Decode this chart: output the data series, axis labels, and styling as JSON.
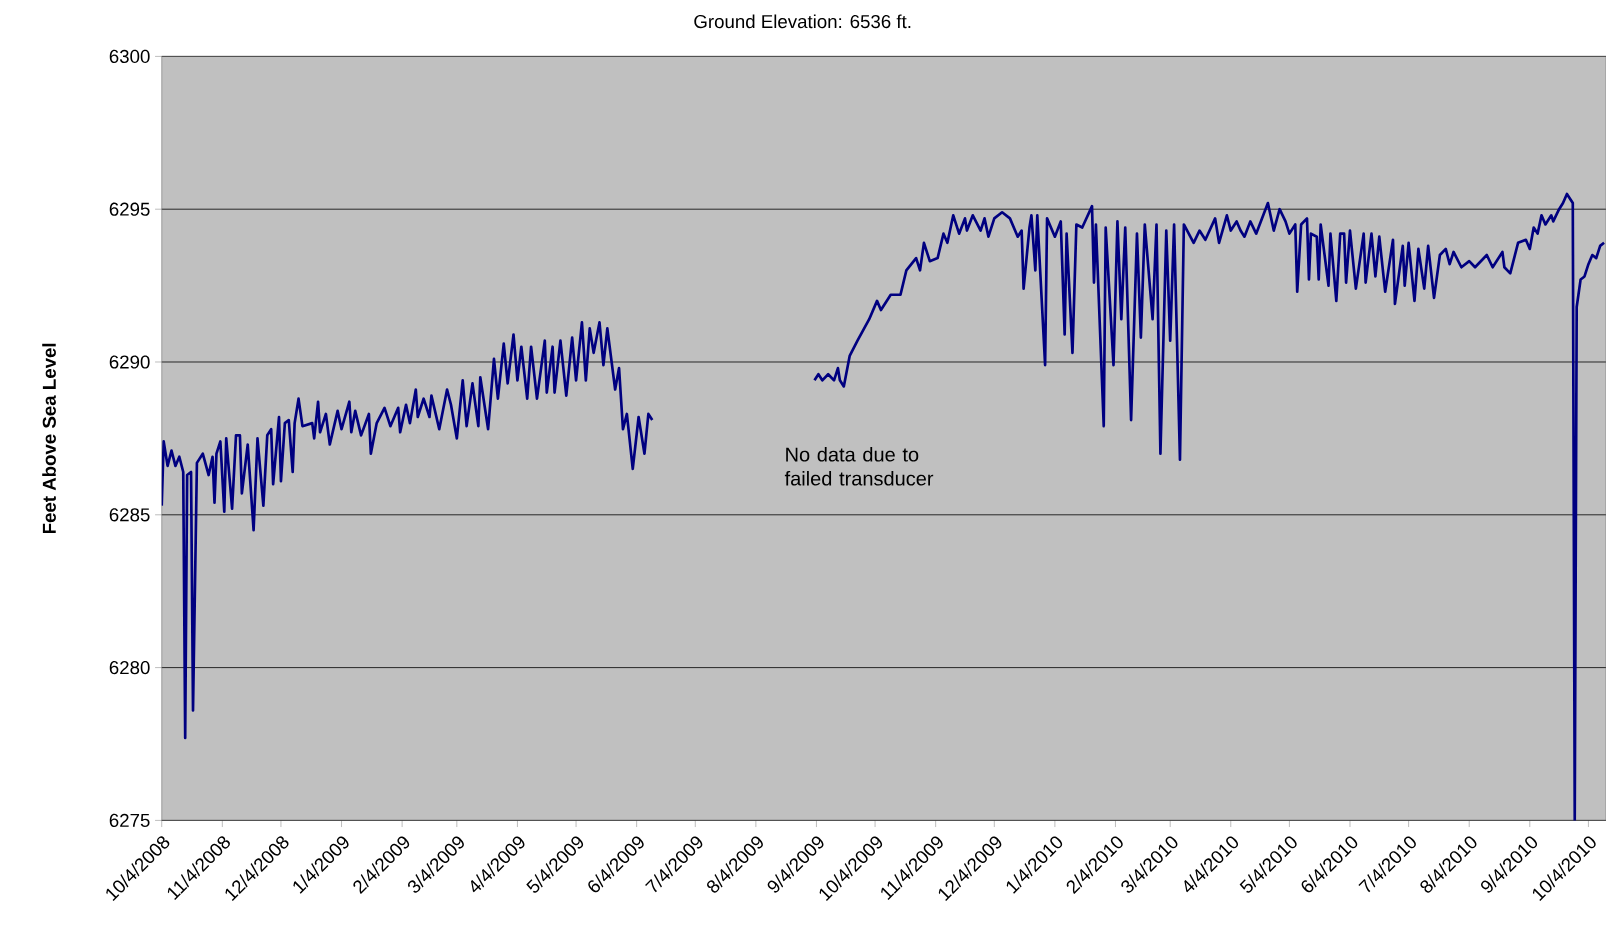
{
  "chart_data": {
    "type": "line",
    "title": "Ground Elevation:  6536 ft.",
    "ylabel": "Feet Above Sea Level",
    "annotations": [
      "No data due to failed transducer"
    ],
    "color": "#000080",
    "grid": "y",
    "xlim": [
      "2008-10-04",
      "2010-10-13"
    ],
    "ylim": [
      6275,
      6300
    ],
    "yticks": [
      6275,
      6280,
      6285,
      6290,
      6295,
      6300
    ],
    "xticks": [
      {
        "value": "2008-10-04",
        "label": "10/4/2008"
      },
      {
        "value": "2008-11-04",
        "label": "11/4/2008"
      },
      {
        "value": "2008-12-04",
        "label": "12/4/2008"
      },
      {
        "value": "2009-01-04",
        "label": "1/4/2009"
      },
      {
        "value": "2009-02-04",
        "label": "2/4/2009"
      },
      {
        "value": "2009-03-04",
        "label": "3/4/2009"
      },
      {
        "value": "2009-04-04",
        "label": "4/4/2009"
      },
      {
        "value": "2009-05-04",
        "label": "5/4/2009"
      },
      {
        "value": "2009-06-04",
        "label": "6/4/2009"
      },
      {
        "value": "2009-07-04",
        "label": "7/4/2009"
      },
      {
        "value": "2009-08-04",
        "label": "8/4/2009"
      },
      {
        "value": "2009-09-04",
        "label": "9/4/2009"
      },
      {
        "value": "2009-10-04",
        "label": "10/4/2009"
      },
      {
        "value": "2009-11-04",
        "label": "11/4/2009"
      },
      {
        "value": "2009-12-04",
        "label": "12/4/2009"
      },
      {
        "value": "2010-01-04",
        "label": "1/4/2010"
      },
      {
        "value": "2010-02-04",
        "label": "2/4/2010"
      },
      {
        "value": "2010-03-04",
        "label": "3/4/2010"
      },
      {
        "value": "2010-04-04",
        "label": "4/4/2010"
      },
      {
        "value": "2010-05-04",
        "label": "5/4/2010"
      },
      {
        "value": "2010-06-04",
        "label": "6/4/2010"
      },
      {
        "value": "2010-07-04",
        "label": "7/4/2010"
      },
      {
        "value": "2010-08-04",
        "label": "8/4/2010"
      },
      {
        "value": "2010-09-04",
        "label": "9/4/2010"
      },
      {
        "value": "2010-10-04",
        "label": "10/4/2010"
      }
    ],
    "x": [
      "2008-10-04",
      "2008-10-05",
      "2008-10-07",
      "2008-10-09",
      "2008-10-11",
      "2008-10-13",
      "2008-10-15",
      "2008-10-16",
      "2008-10-17",
      "2008-10-19",
      "2008-10-20",
      "2008-10-22",
      "2008-10-25",
      "2008-10-28",
      "2008-10-30",
      "2008-10-31",
      "2008-11-01",
      "2008-11-03",
      "2008-11-05",
      "2008-11-06",
      "2008-11-09",
      "2008-11-11",
      "2008-11-13",
      "2008-11-14",
      "2008-11-17",
      "2008-11-20",
      "2008-11-22",
      "2008-11-25",
      "2008-11-27",
      "2008-11-29",
      "2008-11-30",
      "2008-12-03",
      "2008-12-04",
      "2008-12-06",
      "2008-12-08",
      "2008-12-10",
      "2008-12-11",
      "2008-12-13",
      "2008-12-15",
      "2008-12-20",
      "2008-12-21",
      "2008-12-23",
      "2008-12-24",
      "2008-12-27",
      "2008-12-29",
      "2009-01-02",
      "2009-01-04",
      "2009-01-08",
      "2009-01-09",
      "2009-01-11",
      "2009-01-14",
      "2009-01-18",
      "2009-01-19",
      "2009-01-22",
      "2009-01-26",
      "2009-01-29",
      "2009-02-02",
      "2009-02-03",
      "2009-02-06",
      "2009-02-08",
      "2009-02-11",
      "2009-02-12",
      "2009-02-15",
      "2009-02-18",
      "2009-02-19",
      "2009-02-23",
      "2009-02-27",
      "2009-03-01",
      "2009-03-04",
      "2009-03-07",
      "2009-03-09",
      "2009-03-12",
      "2009-03-15",
      "2009-03-16",
      "2009-03-20",
      "2009-03-23",
      "2009-03-25",
      "2009-03-28",
      "2009-03-30",
      "2009-04-02",
      "2009-04-04",
      "2009-04-06",
      "2009-04-09",
      "2009-04-11",
      "2009-04-14",
      "2009-04-18",
      "2009-04-19",
      "2009-04-22",
      "2009-04-23",
      "2009-04-26",
      "2009-04-29",
      "2009-05-02",
      "2009-05-04",
      "2009-05-07",
      "2009-05-09",
      "2009-05-11",
      "2009-05-13",
      "2009-05-16",
      "2009-05-18",
      "2009-05-20",
      "2009-05-24",
      "2009-05-26",
      "2009-05-28",
      "2009-05-30",
      "2009-06-02",
      "2009-06-05",
      "2009-06-08",
      "2009-06-10",
      "2009-06-12",
      "2009-07-20",
      "2009-09-03",
      "2009-09-05",
      "2009-09-07",
      "2009-09-10",
      "2009-09-13",
      "2009-09-15",
      "2009-09-16",
      "2009-09-18",
      "2009-09-21",
      "2009-09-25",
      "2009-10-01",
      "2009-10-05",
      "2009-10-07",
      "2009-10-12",
      "2009-10-17",
      "2009-10-20",
      "2009-10-25",
      "2009-10-27",
      "2009-10-29",
      "2009-11-01",
      "2009-11-05",
      "2009-11-08",
      "2009-11-10",
      "2009-11-13",
      "2009-11-16",
      "2009-11-19",
      "2009-11-20",
      "2009-11-23",
      "2009-11-27",
      "2009-11-29",
      "2009-12-01",
      "2009-12-04",
      "2009-12-08",
      "2009-12-12",
      "2009-12-16",
      "2009-12-18",
      "2009-12-19",
      "2009-12-22",
      "2009-12-23",
      "2009-12-25",
      "2009-12-26",
      "2009-12-30",
      "2009-12-31",
      "2010-01-04",
      "2010-01-07",
      "2010-01-09",
      "2010-01-10",
      "2010-01-13",
      "2010-01-15",
      "2010-01-18",
      "2010-01-23",
      "2010-01-24",
      "2010-01-25",
      "2010-01-29",
      "2010-01-30",
      "2010-02-03",
      "2010-02-05",
      "2010-02-07",
      "2010-02-09",
      "2010-02-12",
      "2010-02-15",
      "2010-02-17",
      "2010-02-19",
      "2010-02-23",
      "2010-02-25",
      "2010-02-27",
      "2010-03-02",
      "2010-03-04",
      "2010-03-06",
      "2010-03-09",
      "2010-03-11",
      "2010-03-16",
      "2010-03-19",
      "2010-03-22",
      "2010-03-27",
      "2010-03-29",
      "2010-04-02",
      "2010-04-04",
      "2010-04-07",
      "2010-04-09",
      "2010-04-11",
      "2010-04-14",
      "2010-04-17",
      "2010-04-23",
      "2010-04-26",
      "2010-04-29",
      "2010-05-02",
      "2010-05-04",
      "2010-05-07",
      "2010-05-08",
      "2010-05-10",
      "2010-05-13",
      "2010-05-14",
      "2010-05-15",
      "2010-05-18",
      "2010-05-19",
      "2010-05-20",
      "2010-05-24",
      "2010-05-25",
      "2010-05-28",
      "2010-05-30",
      "2010-06-01",
      "2010-06-02",
      "2010-06-04",
      "2010-06-07",
      "2010-06-11",
      "2010-06-12",
      "2010-06-15",
      "2010-06-17",
      "2010-06-19",
      "2010-06-22",
      "2010-06-26",
      "2010-06-27",
      "2010-07-01",
      "2010-07-02",
      "2010-07-04",
      "2010-07-07",
      "2010-07-09",
      "2010-07-12",
      "2010-07-14",
      "2010-07-17",
      "2010-07-20",
      "2010-07-23",
      "2010-07-25",
      "2010-07-27",
      "2010-07-31",
      "2010-08-04",
      "2010-08-07",
      "2010-08-13",
      "2010-08-16",
      "2010-08-21",
      "2010-08-22",
      "2010-08-25",
      "2010-08-29",
      "2010-09-02",
      "2010-09-04",
      "2010-09-06",
      "2010-09-08",
      "2010-09-10",
      "2010-09-12",
      "2010-09-15",
      "2010-09-16",
      "2010-09-19",
      "2010-09-21",
      "2010-09-23",
      "2010-09-26",
      "2010-09-27",
      "2010-09-28",
      "2010-09-30",
      "2010-10-02",
      "2010-10-04",
      "2010-10-06",
      "2010-10-08",
      "2010-10-10",
      "2010-10-12"
    ],
    "values": [
      6285.3,
      6287.4,
      6286.6,
      6287.1,
      6286.6,
      6286.9,
      6286.4,
      6277.7,
      6286.3,
      6286.4,
      6278.6,
      6286.7,
      6287.0,
      6286.3,
      6286.9,
      6285.4,
      6287.0,
      6287.4,
      6285.1,
      6287.5,
      6285.2,
      6287.6,
      6287.6,
      6285.7,
      6287.3,
      6284.5,
      6287.5,
      6285.3,
      6287.6,
      6287.8,
      6286.0,
      6288.2,
      6286.1,
      6288.0,
      6288.1,
      6286.4,
      6288.0,
      6288.8,
      6287.9,
      6288.0,
      6287.5,
      6288.7,
      6287.7,
      6288.3,
      6287.3,
      6288.4,
      6287.8,
      6288.7,
      6287.7,
      6288.4,
      6287.6,
      6288.3,
      6287.0,
      6288.0,
      6288.5,
      6287.9,
      6288.5,
      6287.7,
      6288.6,
      6288.0,
      6289.1,
      6288.2,
      6288.8,
      6288.2,
      6288.9,
      6287.8,
      6289.1,
      6288.6,
      6287.5,
      6289.4,
      6287.9,
      6289.3,
      6287.9,
      6289.5,
      6287.8,
      6290.1,
      6288.8,
      6290.6,
      6289.3,
      6290.9,
      6289.4,
      6290.5,
      6288.8,
      6290.5,
      6288.8,
      6290.7,
      6289.0,
      6290.5,
      6289.0,
      6290.7,
      6288.9,
      6290.8,
      6289.4,
      6291.3,
      6289.4,
      6291.1,
      6290.3,
      6291.3,
      6289.9,
      6291.1,
      6289.1,
      6289.8,
      6287.8,
      6288.3,
      6286.5,
      6288.2,
      6287.0,
      6288.3,
      6288.1,
      null,
      6289.4,
      6289.6,
      6289.4,
      6289.6,
      6289.4,
      6289.8,
      6289.4,
      6289.2,
      6290.2,
      6290.7,
      6291.4,
      6292.0,
      6291.7,
      6292.2,
      6292.2,
      6293.0,
      6293.4,
      6293.0,
      6293.9,
      6293.3,
      6293.4,
      6294.2,
      6293.9,
      6294.8,
      6294.2,
      6294.7,
      6294.3,
      6294.8,
      6294.3,
      6294.7,
      6294.1,
      6294.7,
      6294.9,
      6294.7,
      6294.1,
      6294.3,
      6292.4,
      6294.4,
      6294.8,
      6293.0,
      6294.8,
      6289.9,
      6294.7,
      6294.1,
      6294.6,
      6290.9,
      6294.2,
      6290.3,
      6294.5,
      6294.4,
      6295.1,
      6292.6,
      6294.5,
      6287.9,
      6294.4,
      6289.9,
      6294.6,
      6291.4,
      6294.4,
      6288.1,
      6294.2,
      6290.8,
      6294.5,
      6291.4,
      6294.5,
      6287.0,
      6294.3,
      6290.7,
      6294.5,
      6286.8,
      6294.5,
      6293.9,
      6294.3,
      6294.0,
      6294.7,
      6293.9,
      6294.8,
      6294.3,
      6294.6,
      6294.3,
      6294.1,
      6294.6,
      6294.2,
      6295.2,
      6294.3,
      6295.0,
      6294.6,
      6294.2,
      6294.5,
      6292.3,
      6294.5,
      6294.7,
      6292.7,
      6294.2,
      6294.1,
      6292.7,
      6294.5,
      6292.5,
      6294.2,
      6292.0,
      6294.2,
      6294.2,
      6292.6,
      6294.3,
      6292.4,
      6294.2,
      6292.6,
      6294.2,
      6292.8,
      6294.1,
      6292.3,
      6294.0,
      6291.9,
      6293.8,
      6292.5,
      6293.9,
      6292.0,
      6293.7,
      6292.4,
      6293.8,
      6292.1,
      6293.5,
      6293.7,
      6293.2,
      6293.6,
      6293.1,
      6293.3,
      6293.1,
      6293.5,
      6293.1,
      6293.6,
      6293.1,
      6292.9,
      6293.9,
      6294.0,
      6293.7,
      6294.4,
      6294.2,
      6294.8,
      6294.5,
      6294.8,
      6294.6,
      6295.0,
      6295.2,
      6295.5,
      6295.2,
      6275,
      6291.8,
      6292.7,
      6292.8,
      6293.2,
      6293.5,
      6293.4,
      6293.8,
      6293.9
    ]
  }
}
